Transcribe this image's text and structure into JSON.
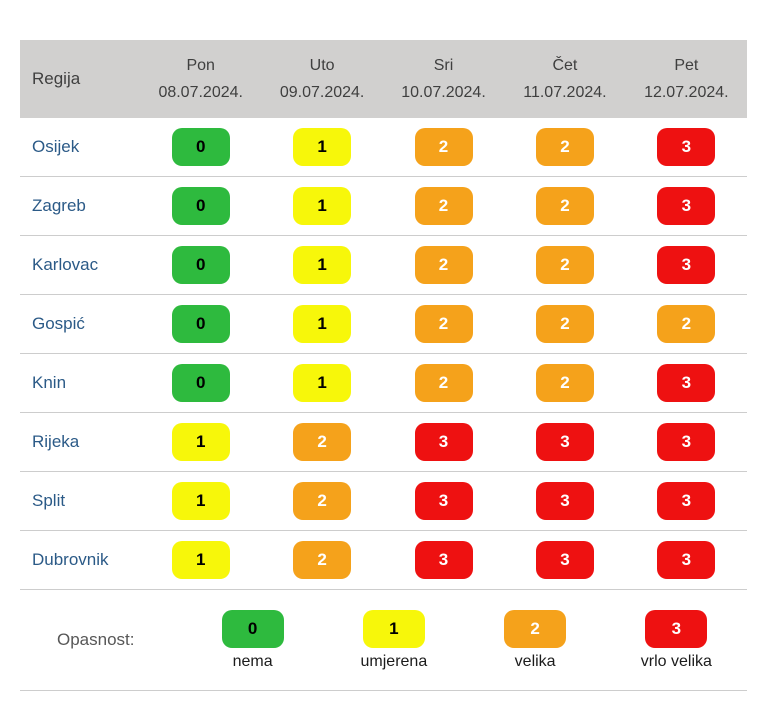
{
  "chart_data": {
    "type": "table",
    "header": {
      "region_label": "Regija",
      "days": [
        {
          "name": "Pon",
          "date": "08.07.2024."
        },
        {
          "name": "Uto",
          "date": "09.07.2024."
        },
        {
          "name": "Sri",
          "date": "10.07.2024."
        },
        {
          "name": "Čet",
          "date": "11.07.2024."
        },
        {
          "name": "Pet",
          "date": "12.07.2024."
        }
      ]
    },
    "rows": [
      {
        "region": "Osijek",
        "values": [
          0,
          1,
          2,
          2,
          3
        ]
      },
      {
        "region": "Zagreb",
        "values": [
          0,
          1,
          2,
          2,
          3
        ]
      },
      {
        "region": "Karlovac",
        "values": [
          0,
          1,
          2,
          2,
          3
        ]
      },
      {
        "region": "Gospić",
        "values": [
          0,
          1,
          2,
          2,
          2
        ]
      },
      {
        "region": "Knin",
        "values": [
          0,
          1,
          2,
          2,
          3
        ]
      },
      {
        "region": "Rijeka",
        "values": [
          1,
          2,
          3,
          3,
          3
        ]
      },
      {
        "region": "Split",
        "values": [
          1,
          2,
          3,
          3,
          3
        ]
      },
      {
        "region": "Dubrovnik",
        "values": [
          1,
          2,
          3,
          3,
          3
        ]
      }
    ],
    "legend": {
      "label": "Opasnost:",
      "items": [
        {
          "value": 0,
          "label": "nema"
        },
        {
          "value": 1,
          "label": "umjerena"
        },
        {
          "value": 2,
          "label": "velika"
        },
        {
          "value": 3,
          "label": "vrlo velika"
        }
      ]
    },
    "value_scale": [
      {
        "value": 0,
        "meaning": "nema",
        "color": "#2EBA3E",
        "text_color": "#000000"
      },
      {
        "value": 1,
        "meaning": "umjerena",
        "color": "#F7F70A",
        "text_color": "#000000"
      },
      {
        "value": 2,
        "meaning": "velika",
        "color": "#F5A21B",
        "text_color": "#FFFFFF"
      },
      {
        "value": 3,
        "meaning": "vrlo velika",
        "color": "#EE1111",
        "text_color": "#FFFFFF"
      }
    ]
  },
  "colors": {
    "header_bg": "#D1D0CF",
    "header_text": "#3F3F3F",
    "region_text": "#2B5A87",
    "separator": "#CDCDCD",
    "legend_label_text": "#575757"
  }
}
